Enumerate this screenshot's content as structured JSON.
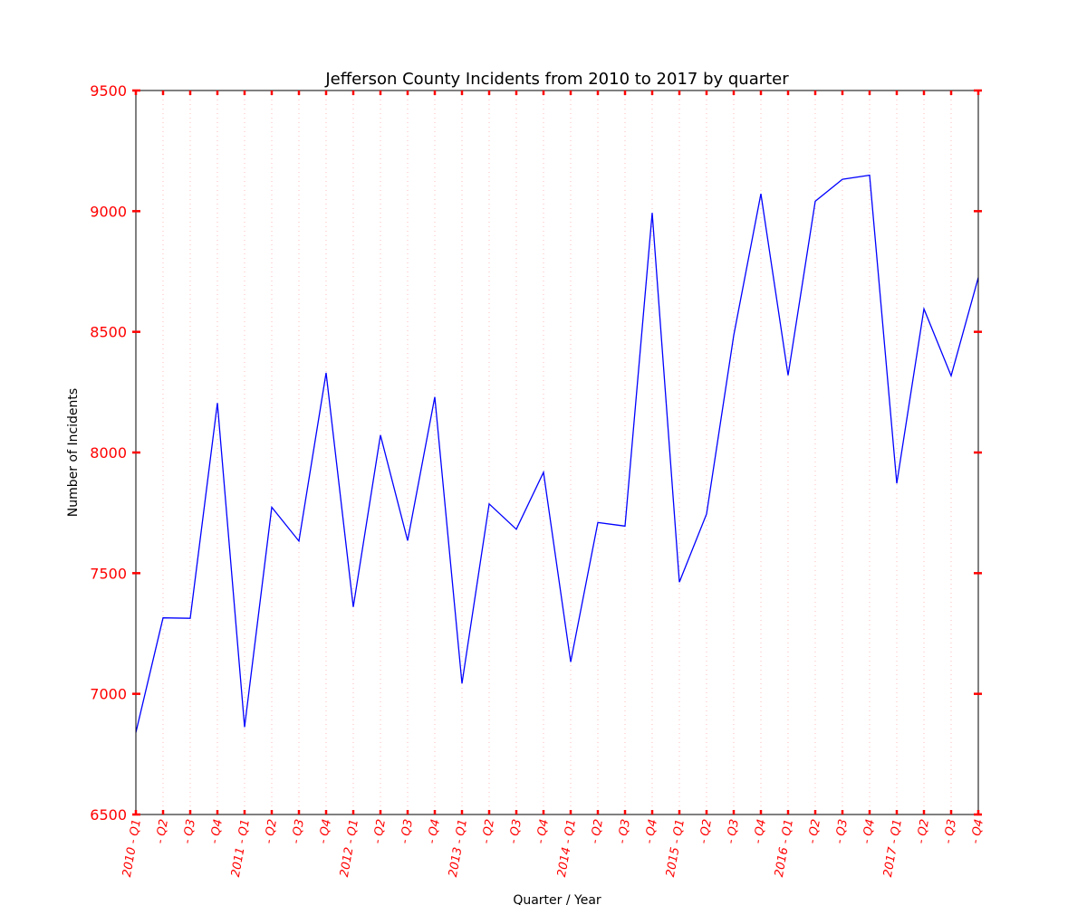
{
  "chart_data": {
    "type": "line",
    "title": "Jefferson County Incidents from 2010 to 2017 by quarter",
    "xlabel": "Quarter / Year",
    "ylabel": "Number of Incidents",
    "ylim": [
      6500,
      9500
    ],
    "yticks": [
      "6500",
      "7000",
      "7500",
      "8000",
      "8500",
      "9000",
      "9500"
    ],
    "tick_color": "#ff0000",
    "line_color": "#0000ff",
    "grid": "vertical dotted",
    "categories": [
      "2010 - Q1",
      "- Q2",
      "- Q3",
      "- Q4",
      "2011 - Q1",
      "- Q2",
      "- Q3",
      "- Q4",
      "2012 - Q1",
      "- Q2",
      "- Q3",
      "- Q4",
      "2013 - Q1",
      "- Q2",
      "- Q3",
      "- Q4",
      "2014 - Q1",
      "- Q2",
      "- Q3",
      "- Q4",
      "2015 - Q1",
      "- Q2",
      "- Q3",
      "- Q4",
      "2016 - Q1",
      "- Q2",
      "- Q3",
      "- Q4",
      "2017 - Q1",
      "- Q2",
      "- Q3",
      "- Q4"
    ],
    "series": [
      {
        "values": [
          6840,
          7315,
          7313,
          8205,
          6862,
          7773,
          7633,
          8330,
          7360,
          8072,
          7635,
          8230,
          7043,
          7787,
          7682,
          7918,
          7132,
          7710,
          7695,
          8993,
          7463,
          7745,
          8485,
          9072,
          8320,
          9041,
          9132,
          9149,
          7872,
          8595,
          8318,
          8725
        ]
      }
    ]
  }
}
